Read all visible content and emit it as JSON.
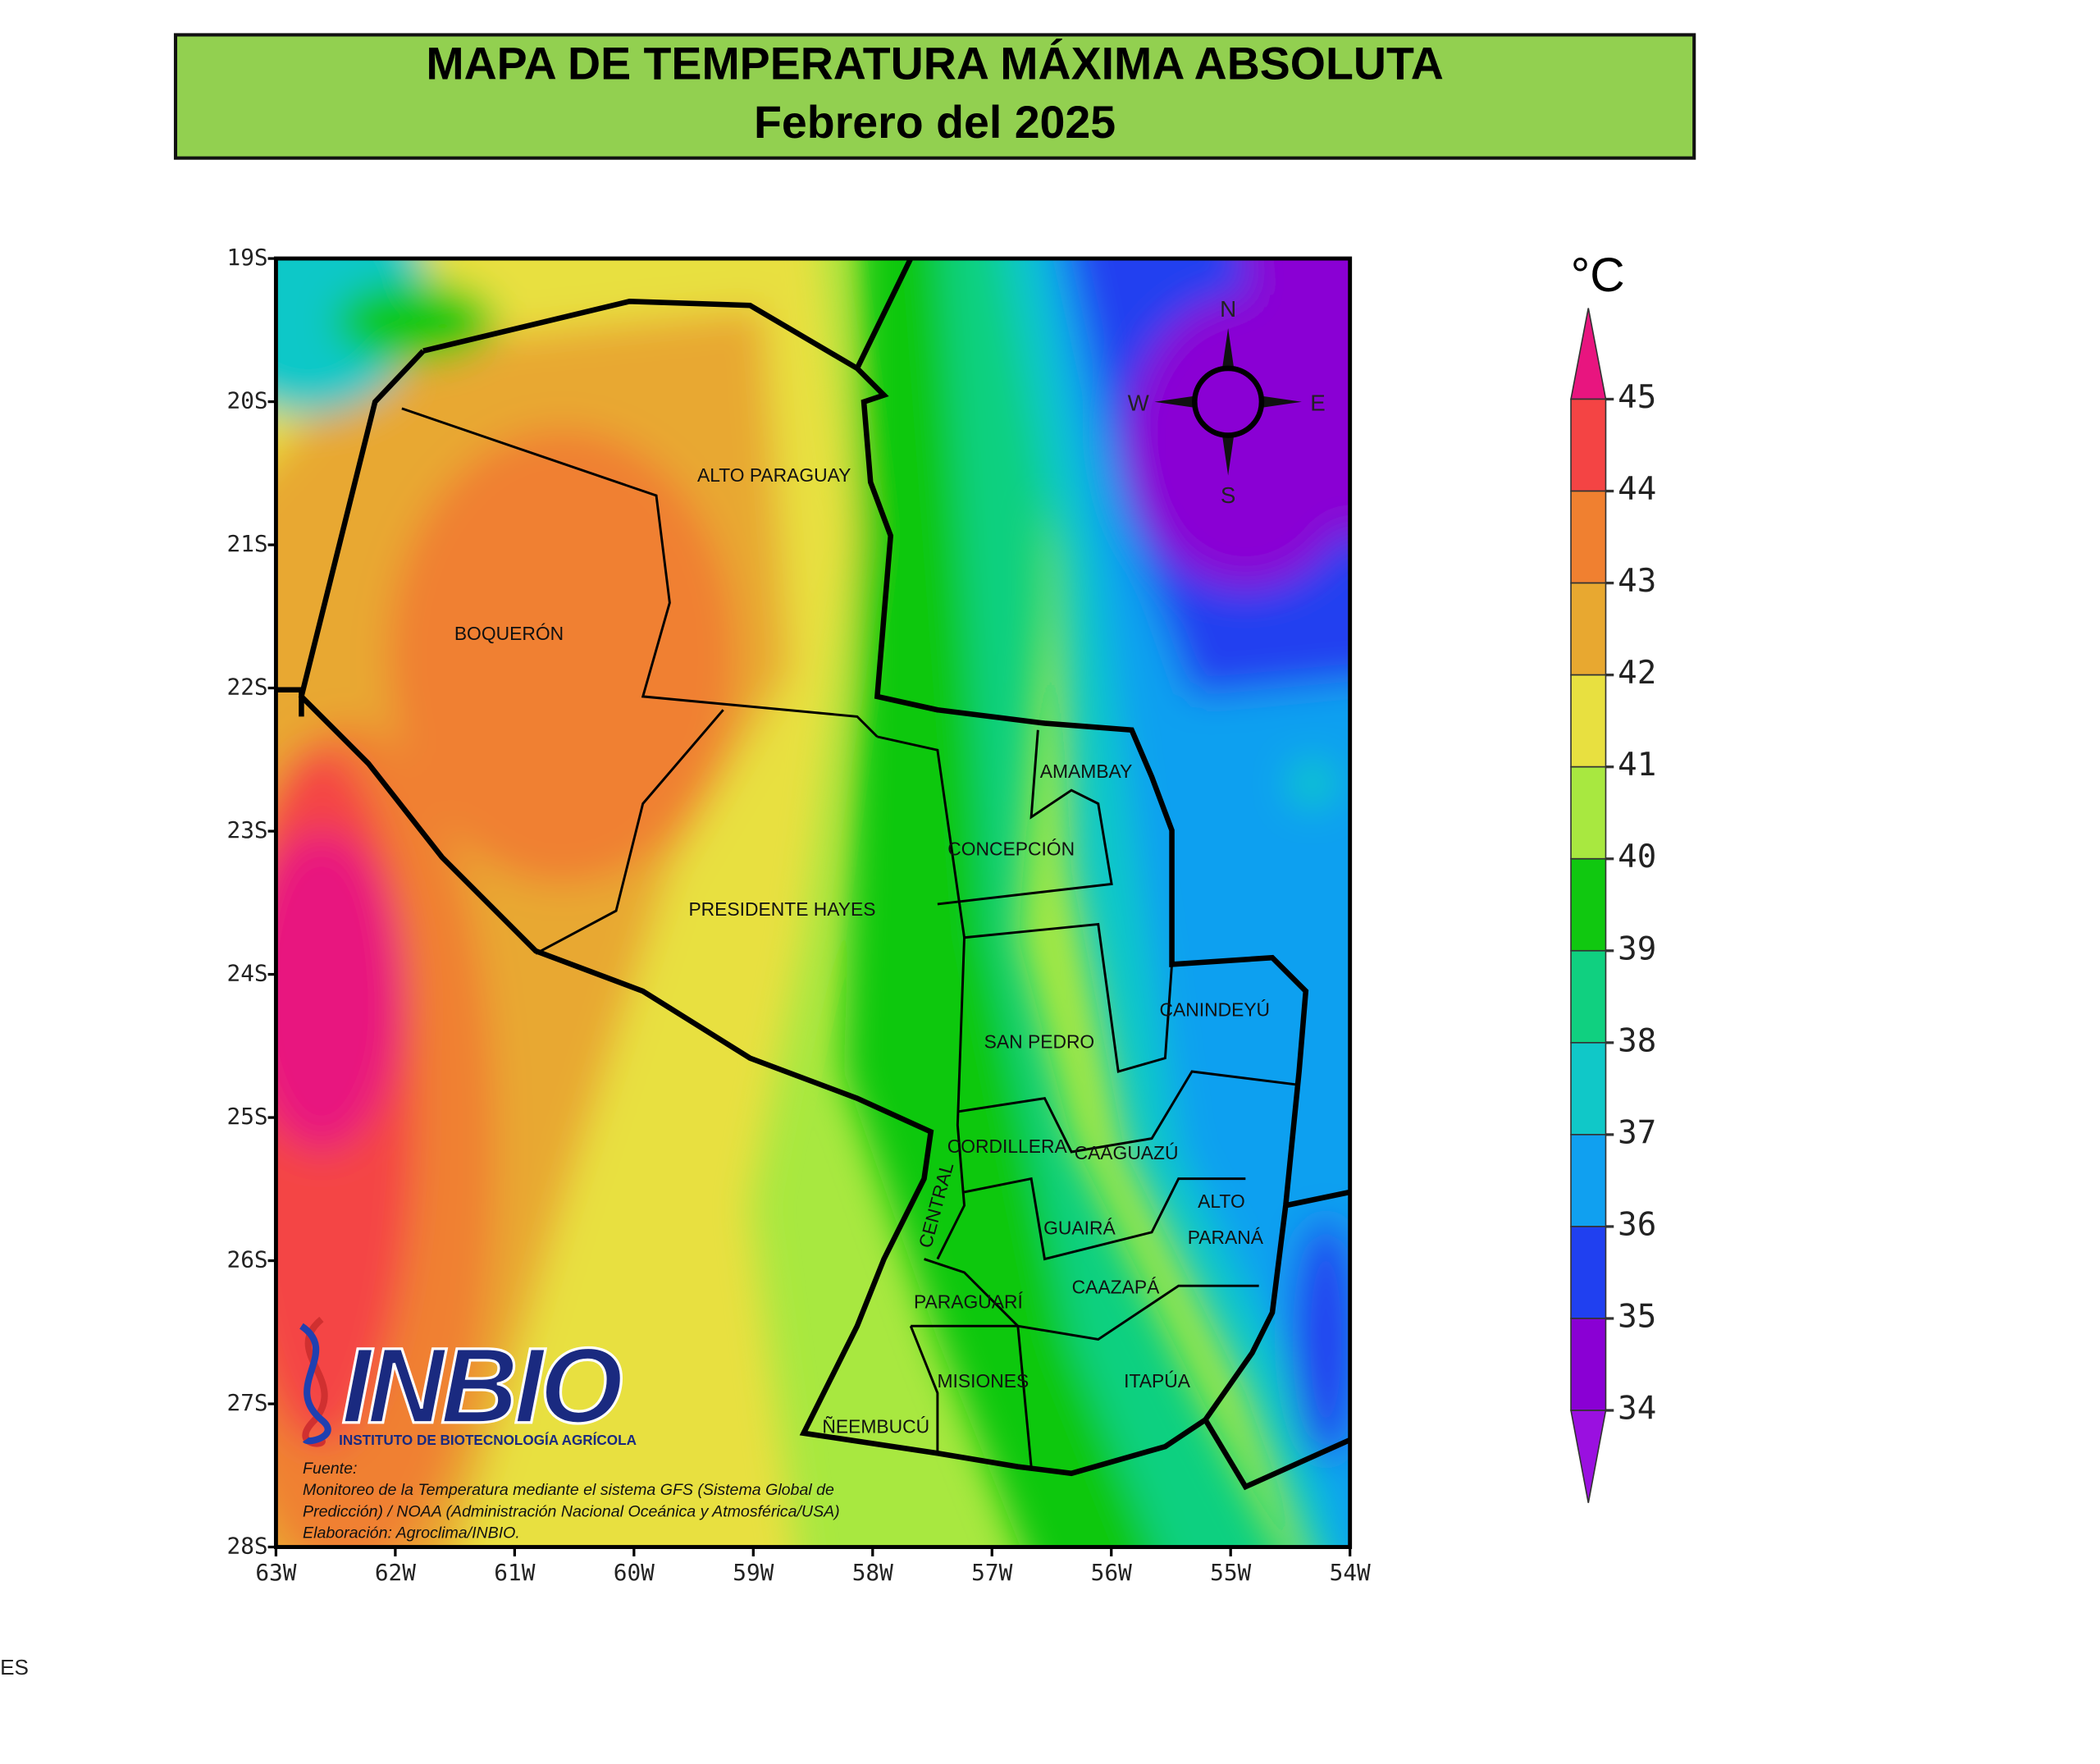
{
  "header": {
    "title": "MAPA DE TEMPERATURA MÁXIMA ABSOLUTA",
    "subtitle": "Febrero del 2025"
  },
  "map": {
    "lat_labels": [
      "19S",
      "20S",
      "21S",
      "22S",
      "23S",
      "24S",
      "25S",
      "26S",
      "27S",
      "28S"
    ],
    "lon_labels": [
      "63W",
      "62W",
      "61W",
      "60W",
      "59W",
      "58W",
      "57W",
      "56W",
      "55W",
      "54W"
    ],
    "departments": [
      "ALTO PARAGUAY",
      "BOQUERÓN",
      "PRESIDENTE HAYES",
      "AMAMBAY",
      "CONCEPCIÓN",
      "SAN PEDRO",
      "CANINDEYÚ",
      "CORDILLERA",
      "CAAGUAZÚ",
      "ALTO",
      "PARANÁ",
      "GUAIRÁ",
      "CENTRAL",
      "CAAZAPÁ",
      "PARAGUARÍ",
      "MISIONES",
      "ITAPÚA",
      "ÑEEMBUCÚ"
    ],
    "compass": {
      "n": "N",
      "s": "S",
      "e": "E",
      "w": "W"
    }
  },
  "legend": {
    "unit": "°C",
    "ticks": [
      45,
      44,
      43,
      42,
      41,
      40,
      39,
      38,
      37,
      36,
      35,
      34
    ],
    "colors": [
      "#e8157f",
      "#f44444",
      "#f08030",
      "#e8a830",
      "#e8e040",
      "#a8e840",
      "#10c810",
      "#10d080",
      "#10c8c8",
      "#10a0f0",
      "#2040f0",
      "#8a00d4",
      "#9a10e0"
    ]
  },
  "logo": {
    "name": "INBIO",
    "subtitle": "INSTITUTO DE BIOTECNOLOGÍA AGRÍCOLA"
  },
  "source": [
    "Fuente:",
    "Monitoreo de la Temperatura mediante el sistema GFS (Sistema Global de",
    "Predicción) / NOAA (Administración Nacional Oceánica y Atmosférica/USA)",
    "Elaboración: Agroclima/INBIO."
  ],
  "footer": "ES"
}
